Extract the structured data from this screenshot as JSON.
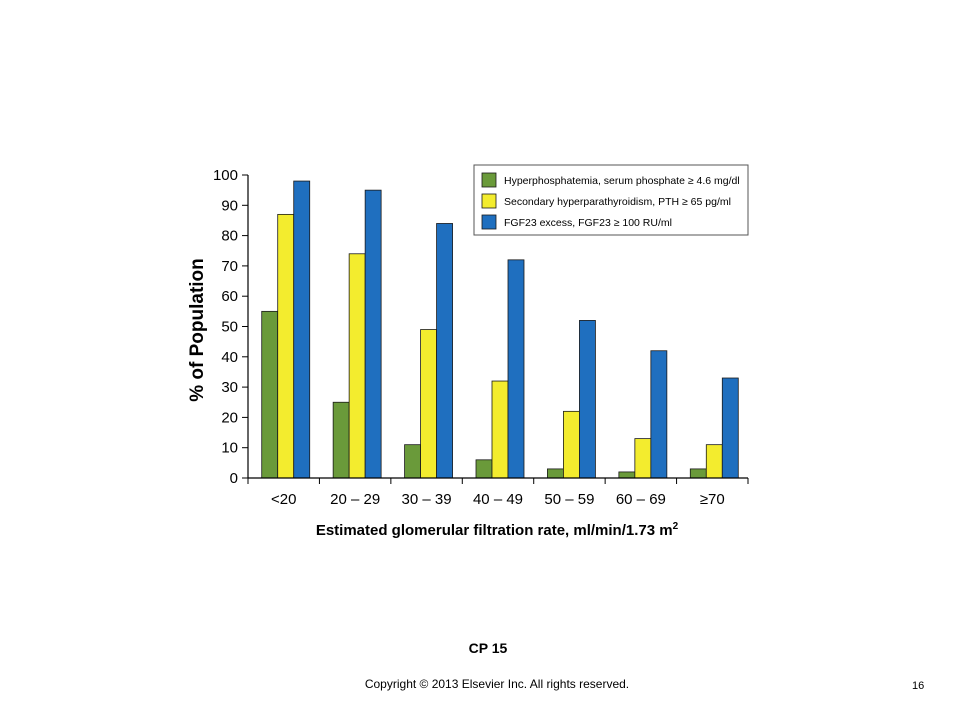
{
  "caption": "CP 15",
  "copyright": "Copyright © 2013 Elsevier Inc. All rights reserved.",
  "page_number": "16",
  "chart_data": {
    "type": "bar",
    "title": "",
    "ylabel": "% of Population",
    "xlabel_main": "Estimated glomerular filtration rate, ml/min/1.73 m",
    "xlabel_sup": "2",
    "ylim": [
      0,
      100
    ],
    "yticks": [
      0,
      10,
      20,
      30,
      40,
      50,
      60,
      70,
      80,
      90,
      100
    ],
    "grid": false,
    "legend_position": "top-right",
    "categories": [
      "<20",
      "20 – 29",
      "30 – 39",
      "40 – 49",
      "50 – 59",
      "60 – 69",
      "≥70"
    ],
    "series": [
      {
        "name": "Hyperphosphatemia, serum phosphate ≥ 4.6 mg/dl",
        "color": "#6a9a3a",
        "values": [
          55,
          25,
          11,
          6,
          3,
          2,
          3
        ]
      },
      {
        "name": "Secondary hyperparathyroidism, PTH ≥ 65 pg/ml",
        "color": "#f3ec2e",
        "values": [
          87,
          74,
          49,
          32,
          22,
          13,
          11
        ]
      },
      {
        "name": "FGF23 excess, FGF23 ≥ 100 RU/ml",
        "color": "#1f6fbf",
        "values": [
          98,
          95,
          84,
          72,
          52,
          42,
          33
        ]
      }
    ]
  }
}
